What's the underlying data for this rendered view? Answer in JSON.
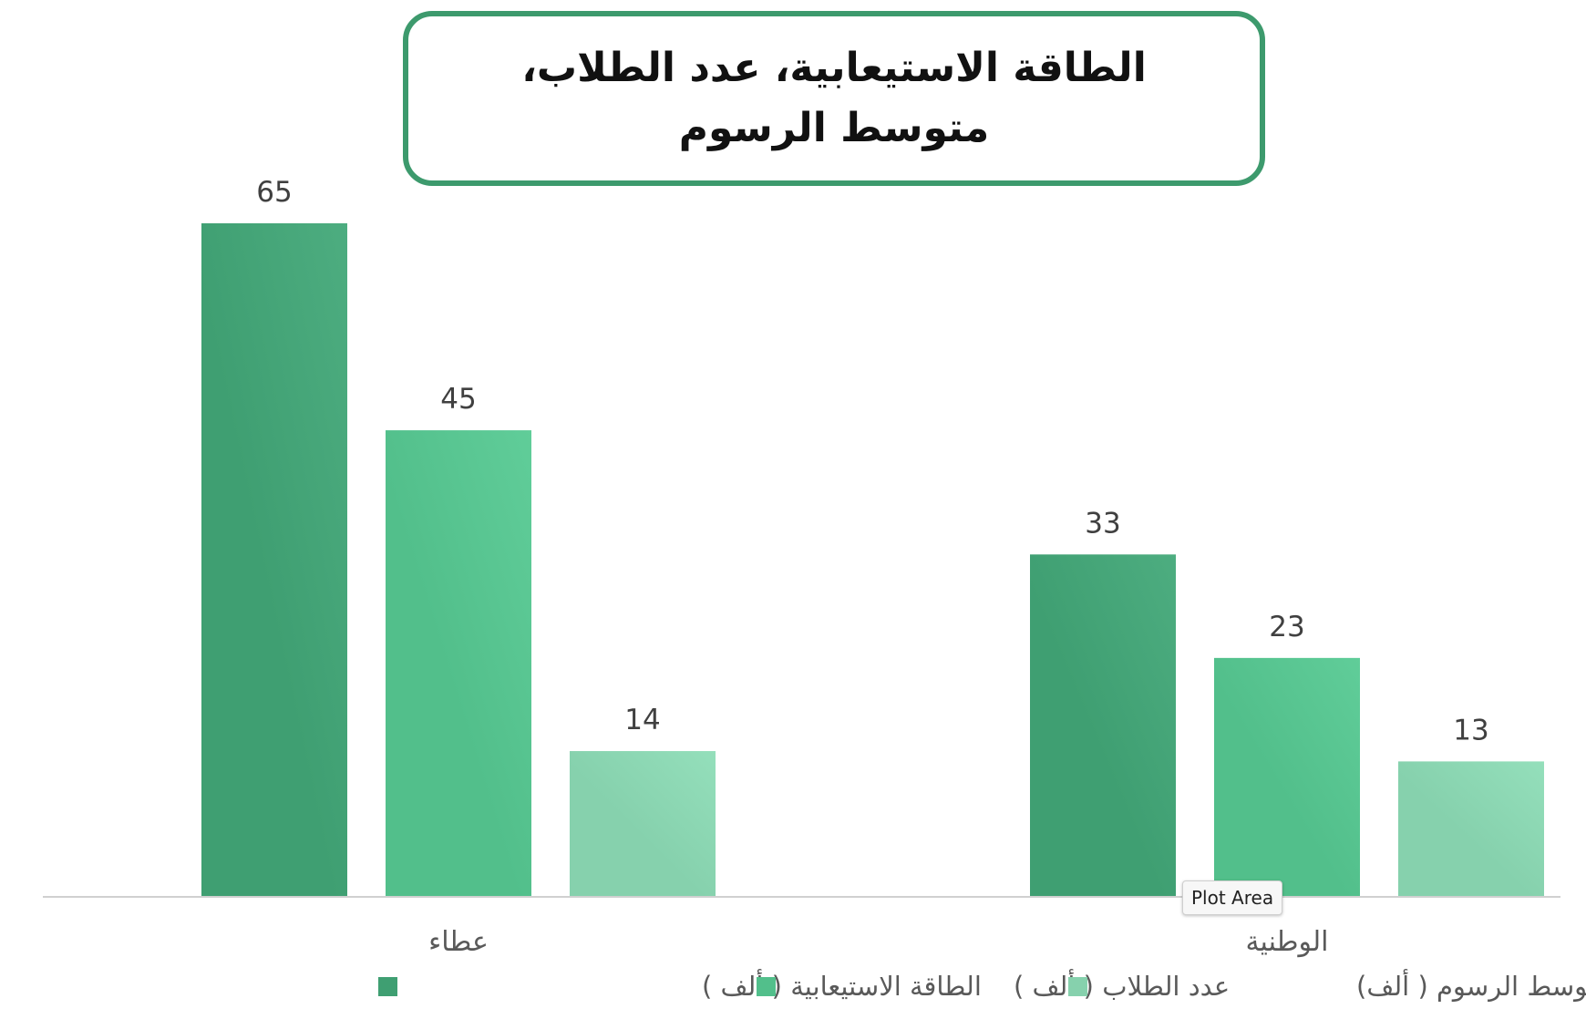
{
  "chart_data": {
    "type": "bar",
    "title": "الطاقة الاستيعابية، عدد الطلاب، متوسط الرسوم",
    "categories": [
      "عطاء",
      "الوطنية"
    ],
    "series": [
      {
        "name": "الطاقة الاستيعابية ( ألف )",
        "values": [
          65,
          33
        ],
        "color": "#3f9f72"
      },
      {
        "name": "عدد الطلاب ( ألف )",
        "values": [
          45,
          23
        ],
        "color": "#52bf8b"
      },
      {
        "name": "متوسط الرسوم ( ألف)",
        "values": [
          14,
          13
        ],
        "color": "#86d1ad"
      }
    ],
    "ylim": [
      0,
      65
    ],
    "grid": false,
    "legend_position": "bottom",
    "data_labels": true
  },
  "ui": {
    "tooltip": "Plot Area"
  }
}
